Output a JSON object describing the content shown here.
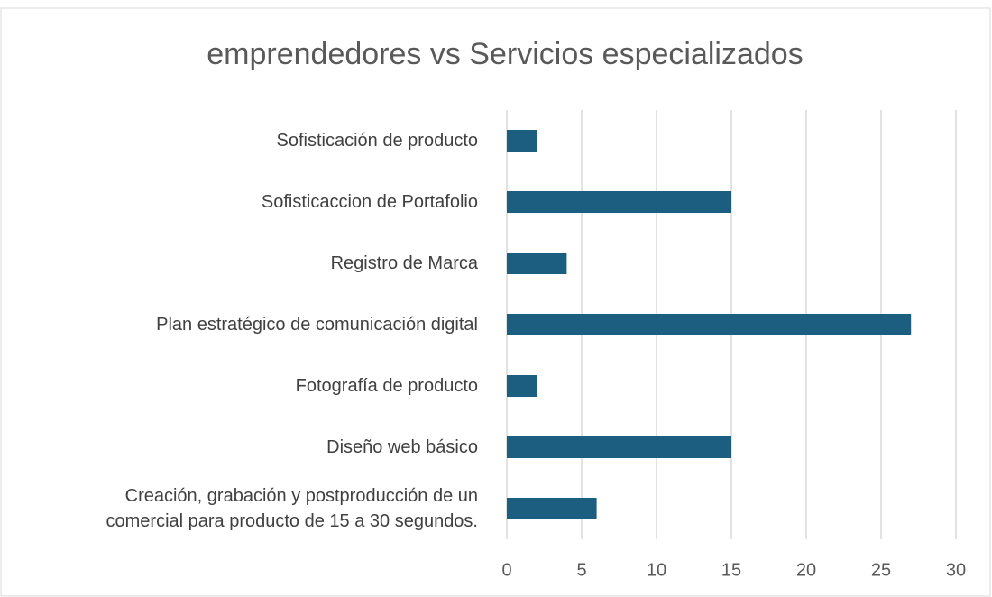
{
  "chart_data": {
    "type": "bar",
    "orientation": "horizontal",
    "title": "emprendedores vs Servicios especializados",
    "categories": [
      "Sofisticación de producto",
      "Sofisticaccion de Portafolio",
      "Registro de Marca",
      "Plan estratégico de comunicación digital",
      "Fotografía de producto",
      "Diseño web básico",
      "Creación, grabación y postproducción de un\ncomercial para producto de 15 a 30 segundos."
    ],
    "values": [
      2,
      15,
      4,
      27,
      2,
      15,
      6
    ],
    "color": "#1b5e80",
    "xlim": [
      0,
      30
    ],
    "xticks": [
      0,
      5,
      10,
      15,
      20,
      25,
      30
    ],
    "grid": true
  }
}
